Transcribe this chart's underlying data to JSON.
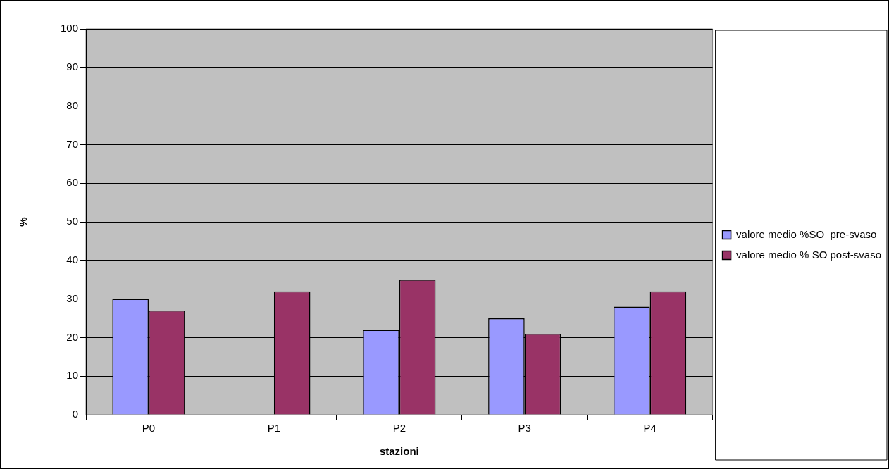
{
  "chart_data": {
    "type": "bar",
    "xlabel": "stazioni",
    "ylabel": "%",
    "categories": [
      "P0",
      "P1",
      "P2",
      "P3",
      "P4"
    ],
    "series": [
      {
        "name": "valore medio %SO  pre-svaso",
        "color": "#9999ff",
        "values": [
          30,
          null,
          22,
          25,
          28
        ]
      },
      {
        "name": "valore medio % SO post-svaso",
        "color": "#993366",
        "values": [
          27,
          32,
          35,
          21,
          32
        ]
      }
    ],
    "ylim": [
      0,
      100
    ],
    "yticks": [
      0,
      10,
      20,
      30,
      40,
      50,
      60,
      70,
      80,
      90,
      100
    ],
    "grid": "y",
    "legend": "right"
  }
}
